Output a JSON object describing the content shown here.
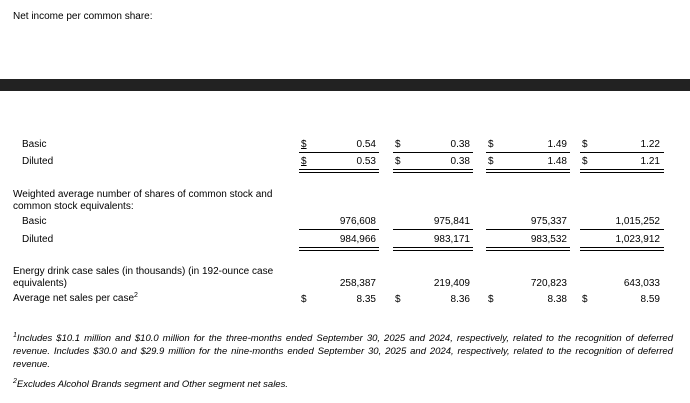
{
  "header": {
    "title": "Net income per common share:"
  },
  "eps": {
    "basic": {
      "label": "Basic",
      "currency": "$",
      "values": [
        "0.54",
        "0.38",
        "1.49",
        "1.22"
      ]
    },
    "diluted": {
      "label": "Diluted",
      "currency": "$",
      "values": [
        "0.53",
        "0.38",
        "1.48",
        "1.21"
      ]
    }
  },
  "shares": {
    "heading_line1": "Weighted average number of shares of common stock and",
    "heading_line2": "common stock equivalents:",
    "basic": {
      "label": "Basic",
      "values": [
        "976,608",
        "975,841",
        "975,337",
        "1,015,252"
      ]
    },
    "diluted": {
      "label": "Diluted",
      "values": [
        "984,966",
        "983,171",
        "983,532",
        "1,023,912"
      ]
    }
  },
  "energy": {
    "label_line1": "Energy drink case sales (in thousands) (in 192-ounce case",
    "label_line2": "equivalents)",
    "values": [
      "258,387",
      "219,409",
      "720,823",
      "643,033"
    ]
  },
  "avg_sales": {
    "label": "Average net sales per case",
    "label_sup": "2",
    "currency": "$",
    "values": [
      "8.35",
      "8.36",
      "8.38",
      "8.59"
    ]
  },
  "footnotes": {
    "note1_sup": "1",
    "note1": "Includes $10.1 million and $10.0 million for the three-months ended September 30, 2025 and 2024, respectively, related to the recognition of deferred revenue. Includes $30.0 and $29.9 million for the nine-months ended September 30, 2025 and 2024, respectively, related to the recognition of deferred revenue.",
    "note2_sup": "2",
    "note2": "Excludes Alcohol Brands segment and Other segment net sales."
  }
}
